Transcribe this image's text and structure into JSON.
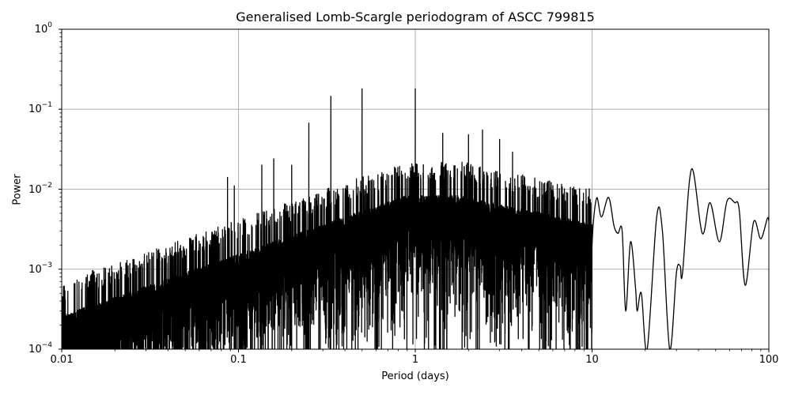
{
  "chart_data": {
    "type": "line",
    "title": "Generalised Lomb-Scargle periodogram of ASCC 799815",
    "xlabel": "Period (days)",
    "ylabel": "Power",
    "xscale": "log",
    "yscale": "log",
    "xlim": [
      0.01,
      100
    ],
    "ylim": [
      0.0001,
      1
    ],
    "grid": true,
    "legend": null,
    "x_ticks": [
      {
        "value": 0.01,
        "label": "0.01"
      },
      {
        "value": 0.1,
        "label": "0.1"
      },
      {
        "value": 1,
        "label": "1"
      },
      {
        "value": 10,
        "label": "10"
      },
      {
        "value": 100,
        "label": "100"
      }
    ],
    "y_ticks": [
      {
        "value": 0.0001,
        "base": "10",
        "exp": "−4"
      },
      {
        "value": 0.001,
        "base": "10",
        "exp": "−3"
      },
      {
        "value": 0.01,
        "base": "10",
        "exp": "−2"
      },
      {
        "value": 0.1,
        "base": "10",
        "exp": "−1"
      },
      {
        "value": 1,
        "base": "10",
        "exp": "0"
      }
    ],
    "line_color": "#000000",
    "grid_color": "#b0b0b0",
    "prominent_peaks": [
      {
        "period": 0.0867,
        "power": 0.014
      },
      {
        "period": 0.0947,
        "power": 0.011
      },
      {
        "period": 0.1355,
        "power": 0.02
      },
      {
        "period": 0.1583,
        "power": 0.024
      },
      {
        "period": 0.2,
        "power": 0.02
      },
      {
        "period": 0.25,
        "power": 0.067
      },
      {
        "period": 0.333,
        "power": 0.145
      },
      {
        "period": 0.5,
        "power": 0.18
      },
      {
        "period": 1.0,
        "power": 0.18
      },
      {
        "period": 1.43,
        "power": 0.05
      },
      {
        "period": 2.0,
        "power": 0.048
      },
      {
        "period": 2.4,
        "power": 0.055
      },
      {
        "period": 3.0,
        "power": 0.042
      },
      {
        "period": 3.55,
        "power": 0.029
      }
    ],
    "smooth_tail": [
      {
        "period": 10.0,
        "power": 0.002
      },
      {
        "period": 10.6,
        "power": 0.0077
      },
      {
        "period": 11.3,
        "power": 0.0045
      },
      {
        "period": 12.4,
        "power": 0.0079
      },
      {
        "period": 13.3,
        "power": 0.0035
      },
      {
        "period": 14.0,
        "power": 0.0028
      },
      {
        "period": 14.8,
        "power": 0.003
      },
      {
        "period": 15.5,
        "power": 0.0003
      },
      {
        "period": 16.5,
        "power": 0.0022
      },
      {
        "period": 17.6,
        "power": 0.0006
      },
      {
        "period": 18.0,
        "power": 0.0003
      },
      {
        "period": 19.0,
        "power": 0.0005
      },
      {
        "period": 20.5,
        "power": 0.0001
      },
      {
        "period": 23.2,
        "power": 0.0045
      },
      {
        "period": 25.0,
        "power": 0.003
      },
      {
        "period": 27.5,
        "power": 0.0001
      },
      {
        "period": 30.0,
        "power": 0.0009
      },
      {
        "period": 31.5,
        "power": 0.0011
      },
      {
        "period": 32.5,
        "power": 0.0009
      },
      {
        "period": 36.5,
        "power": 0.0178
      },
      {
        "period": 42.0,
        "power": 0.0028
      },
      {
        "period": 46.5,
        "power": 0.0068
      },
      {
        "period": 52.5,
        "power": 0.0022
      },
      {
        "period": 58.0,
        "power": 0.0071
      },
      {
        "period": 64.0,
        "power": 0.0068
      },
      {
        "period": 68.0,
        "power": 0.0055
      },
      {
        "period": 73.5,
        "power": 0.00063
      },
      {
        "period": 82.0,
        "power": 0.0039
      },
      {
        "period": 90.0,
        "power": 0.0024
      },
      {
        "period": 98.0,
        "power": 0.0043
      },
      {
        "period": 100.0,
        "power": 0.004
      }
    ]
  }
}
